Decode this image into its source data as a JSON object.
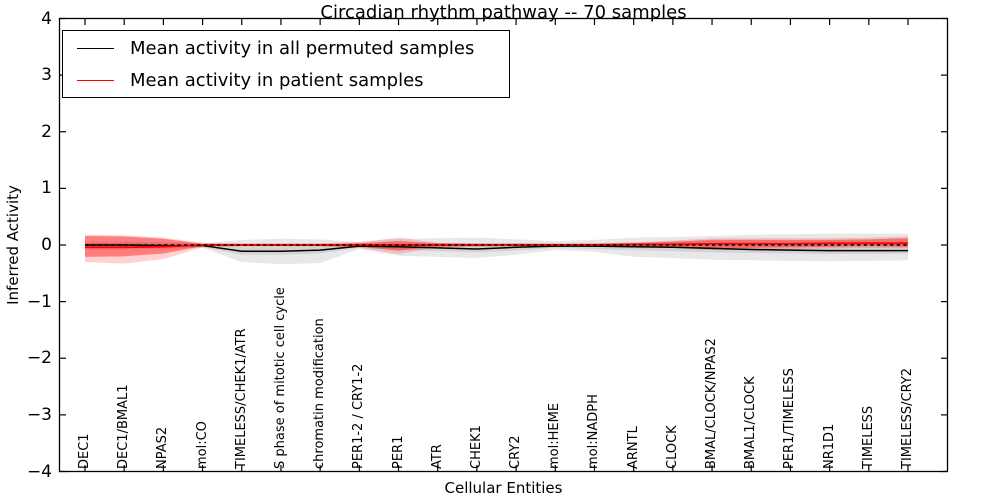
{
  "chart_data": {
    "type": "line",
    "title": "Circadian rhythm pathway -- 70 samples",
    "xlabel": "Cellular Entities",
    "ylabel": "Inferred Activity",
    "ylim": [
      -4,
      4
    ],
    "grid": false,
    "legend_position": "upper-left",
    "y_tick_labels": [
      "4",
      "3",
      "2",
      "1",
      "0",
      "−1",
      "−2",
      "−3",
      "−4"
    ],
    "y_tick_values": [
      4,
      3,
      2,
      1,
      0,
      -1,
      -2,
      -3,
      -4
    ],
    "categories": [
      "DEC1",
      "DEC1/BMAL1",
      "NPAS2",
      "mol:CO",
      "TIMELESS/CHEK1/ATR",
      "S phase of mitotic cell cycle",
      "chromatin modification",
      "PER1-2 / CRY1-2",
      "PER1",
      "ATR",
      "CHEK1",
      "CRY2",
      "mol:HEME",
      "mol:NADPH",
      "ARNTL",
      "CLOCK",
      "BMAL/CLOCK/NPAS2",
      "BMAL1/CLOCK",
      "PER1/TIMELESS",
      "NR1D1",
      "TIMELESS",
      "TIMELESS/CRY2"
    ],
    "series": [
      {
        "name": "Mean activity in all permuted samples",
        "color": "#000000",
        "style": "solid",
        "width": 1.5,
        "values": [
          0.0,
          0.0,
          -0.01,
          -0.01,
          -0.11,
          -0.11,
          -0.09,
          -0.02,
          -0.03,
          -0.05,
          -0.07,
          -0.04,
          -0.02,
          -0.02,
          -0.03,
          -0.04,
          -0.06,
          -0.08,
          -0.09,
          -0.1,
          -0.1,
          -0.1
        ]
      },
      {
        "name": "Mean activity in patient samples",
        "color": "#ff0000",
        "style": "solid",
        "width": 1.8,
        "values": [
          -0.04,
          -0.04,
          -0.03,
          0.0,
          0.0,
          0.0,
          0.0,
          0.0,
          0.0,
          0.0,
          0.0,
          0.0,
          0.0,
          0.0,
          0.01,
          0.01,
          0.02,
          0.02,
          0.02,
          0.03,
          0.03,
          0.03
        ]
      }
    ],
    "bands": [
      {
        "name": "permuted-range-outer",
        "color": "#000000",
        "opacity": 0.09,
        "upper": [
          0.06,
          0.06,
          0.05,
          0.03,
          0.09,
          0.11,
          0.1,
          0.05,
          0.11,
          0.12,
          0.13,
          0.1,
          0.07,
          0.09,
          0.13,
          0.14,
          0.16,
          0.18,
          0.19,
          0.2,
          0.2,
          0.2
        ],
        "lower": [
          -0.08,
          -0.08,
          -0.07,
          -0.05,
          -0.3,
          -0.34,
          -0.32,
          -0.07,
          -0.19,
          -0.21,
          -0.23,
          -0.17,
          -0.09,
          -0.12,
          -0.21,
          -0.23,
          -0.26,
          -0.27,
          -0.28,
          -0.29,
          -0.28,
          -0.27
        ]
      },
      {
        "name": "permuted-range-inner",
        "color": "#000000",
        "opacity": 0.09,
        "upper": [
          0.04,
          0.04,
          0.03,
          0.02,
          -0.04,
          -0.04,
          -0.03,
          0.02,
          0.03,
          0.03,
          0.03,
          0.03,
          0.02,
          0.03,
          0.04,
          0.05,
          0.06,
          0.06,
          0.06,
          0.06,
          0.06,
          0.06
        ],
        "lower": [
          -0.05,
          -0.05,
          -0.05,
          -0.04,
          -0.17,
          -0.17,
          -0.15,
          -0.05,
          -0.08,
          -0.11,
          -0.13,
          -0.1,
          -0.05,
          -0.07,
          -0.09,
          -0.11,
          -0.13,
          -0.14,
          -0.15,
          -0.16,
          -0.16,
          -0.15
        ]
      },
      {
        "name": "patient-range-outer",
        "color": "#ff0000",
        "opacity": 0.18,
        "upper": [
          0.18,
          0.17,
          0.13,
          0.04,
          0.03,
          0.03,
          0.03,
          0.05,
          0.13,
          0.04,
          0.03,
          0.03,
          0.03,
          0.03,
          0.05,
          0.08,
          0.12,
          0.12,
          0.12,
          0.12,
          0.13,
          0.15
        ],
        "lower": [
          -0.3,
          -0.33,
          -0.25,
          -0.04,
          -0.03,
          -0.03,
          -0.03,
          -0.05,
          -0.16,
          -0.04,
          -0.03,
          -0.03,
          -0.03,
          -0.03,
          -0.04,
          -0.05,
          -0.09,
          -0.08,
          -0.07,
          -0.06,
          -0.05,
          -0.06
        ]
      },
      {
        "name": "patient-range-inner",
        "color": "#ff0000",
        "opacity": 0.4,
        "upper": [
          0.16,
          0.15,
          0.11,
          0.02,
          0.02,
          0.02,
          0.02,
          0.03,
          0.07,
          0.03,
          0.02,
          0.02,
          0.02,
          0.02,
          0.03,
          0.06,
          0.09,
          0.09,
          0.09,
          0.09,
          0.1,
          0.12
        ],
        "lower": [
          -0.21,
          -0.2,
          -0.15,
          -0.02,
          -0.02,
          -0.02,
          -0.02,
          -0.03,
          -0.1,
          -0.03,
          -0.02,
          -0.02,
          -0.02,
          -0.02,
          -0.03,
          -0.04,
          -0.06,
          -0.05,
          -0.04,
          -0.03,
          -0.02,
          -0.03
        ]
      }
    ],
    "reference_line": {
      "y": 0,
      "style": "dashed",
      "color": "#000000"
    },
    "legend": [
      {
        "label": "Mean activity in all permuted samples",
        "color": "#000000"
      },
      {
        "label": "Mean activity in patient samples",
        "color": "#ff0000"
      }
    ],
    "axis_color": "#000000"
  }
}
